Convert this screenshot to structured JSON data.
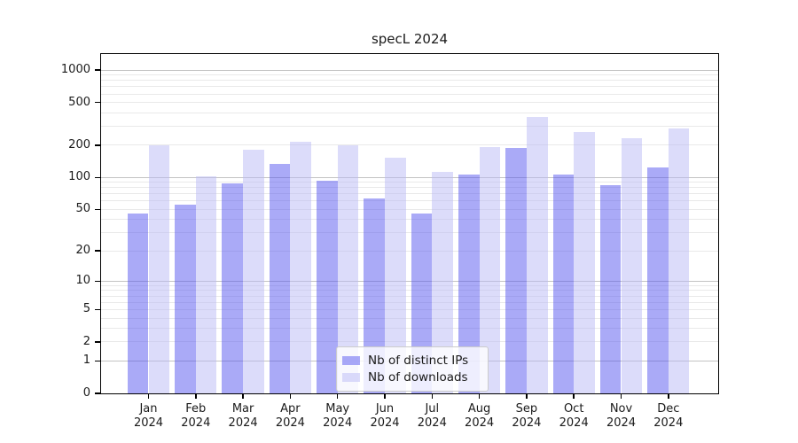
{
  "title": "specL 2024",
  "colors": {
    "background": "#ffffff",
    "axis": "#000000",
    "text": "#1a1a1a",
    "grid_major": "#c3c3c3",
    "grid_minor": "#e9e9e9",
    "series1": "rgba(85,85,240,0.5)",
    "series2": "rgba(185,185,245,0.5)"
  },
  "chart_data": {
    "type": "bar",
    "title": "specL 2024",
    "categories": [
      "Jan",
      "Feb",
      "Mar",
      "Apr",
      "May",
      "Jun",
      "Jul",
      "Aug",
      "Sep",
      "Oct",
      "Nov",
      "Dec"
    ],
    "year": "2024",
    "series": [
      {
        "name": "Nb of distinct IPs",
        "color": "rgba(85,85,240,0.5)",
        "values": [
          46,
          55,
          88,
          135,
          93,
          64,
          46,
          106,
          188,
          107,
          85,
          124
        ]
      },
      {
        "name": "Nb of downloads",
        "color": "rgba(185,185,245,0.5)",
        "values": [
          200,
          102,
          183,
          215,
          200,
          152,
          113,
          194,
          365,
          264,
          232,
          285
        ]
      }
    ],
    "xlabel": "",
    "ylabel": "",
    "yscale": "log1p",
    "yticks": [
      0,
      1,
      2,
      5,
      10,
      20,
      50,
      100,
      200,
      500,
      1000
    ],
    "ylim": [
      0,
      1410
    ],
    "grid": {
      "major_values": [
        1,
        10,
        100,
        1000
      ],
      "minor_values": [
        2,
        3,
        4,
        5,
        6,
        7,
        8,
        9,
        20,
        30,
        40,
        50,
        60,
        70,
        80,
        90,
        200,
        300,
        400,
        500,
        600,
        700,
        800,
        900
      ]
    },
    "legend_position": "bottom-center"
  },
  "legend": {
    "items": [
      {
        "label": "Nb of distinct IPs",
        "swatch": "series1"
      },
      {
        "label": "Nb of downloads",
        "swatch": "series2"
      }
    ]
  }
}
